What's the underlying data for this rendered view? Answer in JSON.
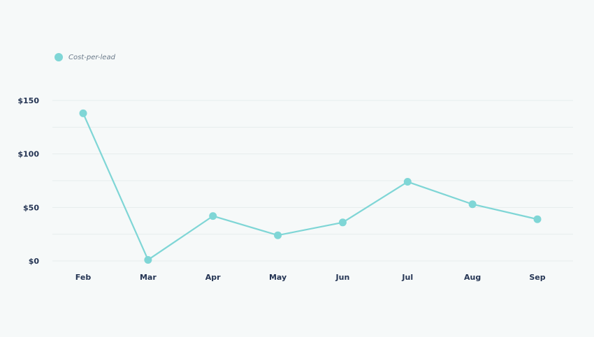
{
  "colors": {
    "background": "#f6f9f9",
    "series": "#7fd6d6",
    "grid": "#e6eded",
    "axis_text": "#253554"
  },
  "chart_data": {
    "type": "line",
    "categories": [
      "Feb",
      "Mar",
      "Apr",
      "May",
      "Jun",
      "Jul",
      "Aug",
      "Sep"
    ],
    "series": [
      {
        "name": "Cost-per-lead",
        "values": [
          138,
          1,
          42,
          24,
          36,
          74,
          53,
          39
        ]
      }
    ],
    "ylim": [
      0,
      150
    ],
    "yticks": [
      0,
      50,
      100,
      150
    ],
    "ytick_labels": [
      "$0",
      "$50",
      "$100",
      "$150"
    ],
    "grid": true,
    "legend_position": "top-left",
    "title": "",
    "xlabel": "",
    "ylabel": ""
  }
}
